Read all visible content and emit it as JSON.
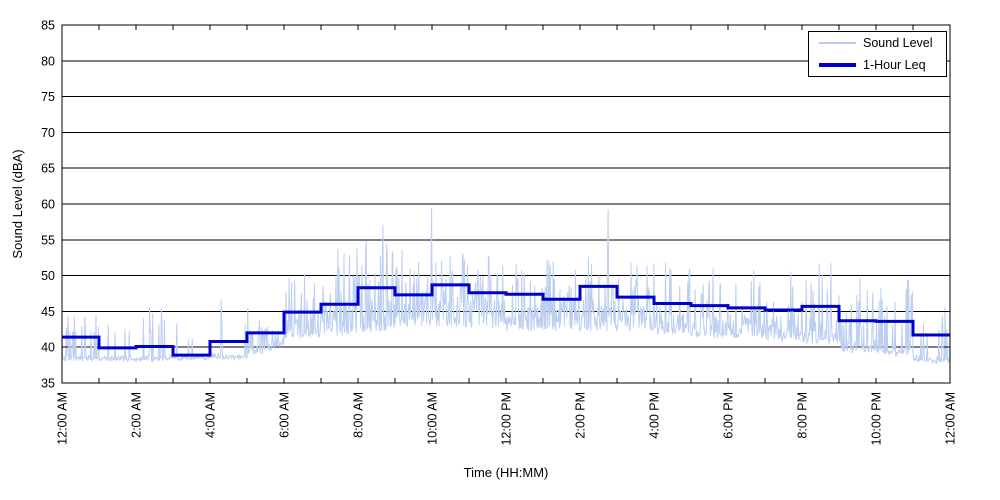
{
  "chart_data": {
    "type": "line",
    "title": "",
    "xlabel": "Time (HH:MM)",
    "ylabel": "Sound Level (dBA)",
    "ylim": [
      35,
      85
    ],
    "ytick_step": 5,
    "x_hours": 24,
    "x_tick_every_hours": 2,
    "x_minor_tick_every_hours": 1,
    "x_tick_labels": [
      "12:00 AM",
      "2:00 AM",
      "4:00 AM",
      "6:00 AM",
      "8:00 AM",
      "10:00 AM",
      "12:00 PM",
      "2:00 PM",
      "4:00 PM",
      "6:00 PM",
      "8:00 PM",
      "10:00 PM",
      "12:00 AM"
    ],
    "grid": "horizontal-solid-black",
    "legend": {
      "position": "top-right",
      "entries": [
        {
          "label": "Sound Level",
          "color": "#bccff1",
          "thickness": 2
        },
        {
          "label": "1-Hour Leq",
          "color": "#0000cc",
          "thickness": 4
        }
      ]
    },
    "series": [
      {
        "name": "Sound Level",
        "type": "minute-noise",
        "color": "#bccff1",
        "seed": 1337,
        "profile_by_hour": [
          {
            "floor": 38.2,
            "jitter": 0.5,
            "spike_prob": 0.22,
            "spike_lo": 42.0,
            "spike_hi": 46.5
          },
          {
            "floor": 38.2,
            "jitter": 0.45,
            "spike_prob": 0.12,
            "spike_lo": 42.0,
            "spike_hi": 45.5
          },
          {
            "floor": 38.2,
            "jitter": 0.45,
            "spike_prob": 0.15,
            "spike_lo": 42.0,
            "spike_hi": 46.5
          },
          {
            "floor": 38.3,
            "jitter": 0.4,
            "spike_prob": 0.06,
            "spike_lo": 41.0,
            "spike_hi": 44.0
          },
          {
            "floor": 38.4,
            "jitter": 0.5,
            "spike_prob": 0.13,
            "spike_lo": 42.5,
            "spike_hi": 46.8
          },
          {
            "floor": 38.6,
            "jitter": 0.8,
            "spike_prob": 0.18,
            "spike_lo": 42.0,
            "spike_hi": 46.5,
            "floor_end": 40.3
          },
          {
            "floor": 41.3,
            "jitter": 1.9,
            "spike_prob": 0.3,
            "spike_lo": 45.0,
            "spike_hi": 50.5
          },
          {
            "floor": 41.8,
            "jitter": 2.0,
            "spike_prob": 0.35,
            "spike_lo": 45.0,
            "spike_hi": 54.5
          },
          {
            "floor": 42.3,
            "jitter": 2.2,
            "spike_prob": 0.4,
            "spike_lo": 46.0,
            "spike_hi": 55.0
          },
          {
            "floor": 42.8,
            "jitter": 2.2,
            "spike_prob": 0.4,
            "spike_lo": 46.0,
            "spike_hi": 54.0
          },
          {
            "floor": 42.8,
            "jitter": 2.2,
            "spike_prob": 0.42,
            "spike_lo": 46.0,
            "spike_hi": 55.0
          },
          {
            "floor": 42.8,
            "jitter": 2.0,
            "spike_prob": 0.4,
            "spike_lo": 46.0,
            "spike_hi": 53.0
          },
          {
            "floor": 42.4,
            "jitter": 2.0,
            "spike_prob": 0.38,
            "spike_lo": 45.5,
            "spike_hi": 52.0
          },
          {
            "floor": 42.4,
            "jitter": 2.0,
            "spike_prob": 0.36,
            "spike_lo": 45.0,
            "spike_hi": 52.5
          },
          {
            "floor": 42.4,
            "jitter": 2.0,
            "spike_prob": 0.38,
            "spike_lo": 45.5,
            "spike_hi": 53.0
          },
          {
            "floor": 42.3,
            "jitter": 2.0,
            "spike_prob": 0.36,
            "spike_lo": 45.0,
            "spike_hi": 53.0
          },
          {
            "floor": 41.9,
            "jitter": 1.9,
            "spike_prob": 0.34,
            "spike_lo": 44.5,
            "spike_hi": 52.0
          },
          {
            "floor": 41.5,
            "jitter": 1.8,
            "spike_prob": 0.33,
            "spike_lo": 44.0,
            "spike_hi": 51.0
          },
          {
            "floor": 41.4,
            "jitter": 1.8,
            "spike_prob": 0.33,
            "spike_lo": 44.0,
            "spike_hi": 51.5
          },
          {
            "floor": 41.0,
            "jitter": 1.7,
            "spike_prob": 0.3,
            "spike_lo": 43.5,
            "spike_hi": 51.5
          },
          {
            "floor": 40.5,
            "jitter": 1.6,
            "spike_prob": 0.3,
            "spike_lo": 43.5,
            "spike_hi": 52.0
          },
          {
            "floor": 39.4,
            "jitter": 1.1,
            "spike_prob": 0.26,
            "spike_lo": 43.0,
            "spike_hi": 50.0
          },
          {
            "floor": 39.0,
            "jitter": 0.9,
            "spike_prob": 0.2,
            "spike_lo": 43.0,
            "spike_hi": 51.0
          },
          {
            "floor": 38.2,
            "jitter": 0.6,
            "spike_prob": 0.13,
            "spike_lo": 42.0,
            "spike_hi": 48.5,
            "floor_end": 37.7
          }
        ],
        "notable_peaks": [
          {
            "minute": 520,
            "dBA": 57.1
          },
          {
            "minute": 599,
            "dBA": 59.5
          },
          {
            "minute": 885,
            "dBA": 59.2
          },
          {
            "minute": 1439,
            "dBA": 41.8
          }
        ]
      },
      {
        "name": "1-Hour Leq",
        "type": "step-hourly",
        "color": "#0000cc",
        "hour_start_labels": [
          "12 AM",
          "1 AM",
          "2 AM",
          "3 AM",
          "4 AM",
          "5 AM",
          "6 AM",
          "7 AM",
          "8 AM",
          "9 AM",
          "10 AM",
          "11 AM",
          "12 PM",
          "1 PM",
          "2 PM",
          "3 PM",
          "4 PM",
          "5 PM",
          "6 PM",
          "7 PM",
          "8 PM",
          "9 PM",
          "10 PM",
          "11 PM"
        ],
        "values": [
          41.4,
          39.9,
          40.1,
          38.9,
          40.8,
          42.0,
          44.9,
          46.0,
          48.3,
          47.3,
          48.7,
          47.6,
          47.4,
          46.7,
          48.5,
          47.0,
          46.1,
          45.8,
          45.5,
          45.2,
          45.7,
          43.7,
          43.6,
          41.7
        ]
      }
    ]
  },
  "colors": {
    "background": "#ffffff",
    "axis": "#000000",
    "grid": "#000000",
    "sound_level_line": "#bccff1",
    "leq_line": "#0000cc",
    "text": "#000000"
  }
}
